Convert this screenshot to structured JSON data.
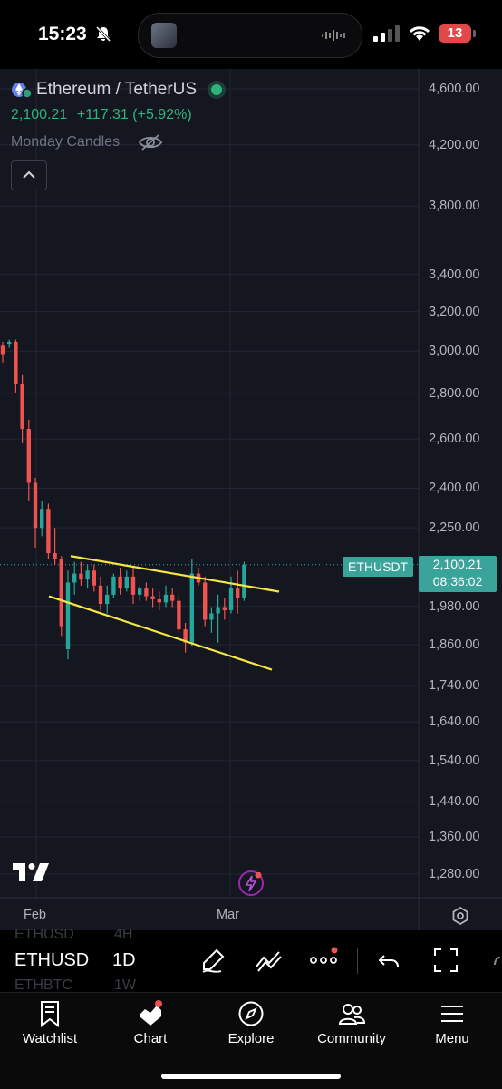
{
  "status_bar": {
    "time": "15:23",
    "battery": "13"
  },
  "chart": {
    "symbol_title": "Ethereum / TetherUS",
    "last_price": "2,100.21",
    "change": "+117.31 (+5.92%)",
    "series_label": "Monday Candles",
    "price_tag_label": "ETHUSDT",
    "current_price": "2,100.21",
    "countdown": "08:36:02",
    "y_axis_labels": [
      "4,600.00",
      "4,200.00",
      "3,800.00",
      "3,400.00",
      "3,200.00",
      "3,000.00",
      "2,800.00",
      "2,600.00",
      "2,400.00",
      "2,250.00",
      "1,980.00",
      "1,860.00",
      "1,740.00",
      "1,640.00",
      "1,540.00",
      "1,440.00",
      "1,360.00",
      "1,280.00"
    ],
    "x_axis_labels": [
      "Feb",
      "Mar"
    ],
    "colors": {
      "up": "#26a69a",
      "down": "#ef5350",
      "trendline": "#f5e642",
      "background": "#141620",
      "price_tag": "#3aa39a"
    }
  },
  "chart_data": {
    "type": "candlestick",
    "symbol": "ETHUSDT",
    "interval": "1D",
    "last_price": 2100.21,
    "y_axis_ticks": [
      4600,
      4200,
      3800,
      3400,
      3200,
      3000,
      2800,
      2600,
      2400,
      2250,
      1980,
      1860,
      1740,
      1640,
      1540,
      1440,
      1360,
      1280
    ],
    "x_axis_ticks": [
      "Feb",
      "Mar"
    ],
    "trendlines": [
      {
        "from": 2130,
        "to": 2010
      },
      {
        "from": 1995,
        "to": 1770
      }
    ],
    "candles": [
      {
        "o": 3000,
        "h": 3020,
        "l": 2920,
        "c": 2960
      },
      {
        "o": 3010,
        "h": 3030,
        "l": 2990,
        "c": 3020
      },
      {
        "o": 3020,
        "h": 3030,
        "l": 2780,
        "c": 2820
      },
      {
        "o": 2820,
        "h": 2860,
        "l": 2560,
        "c": 2620
      },
      {
        "o": 2620,
        "h": 2660,
        "l": 2330,
        "c": 2400
      },
      {
        "o": 2400,
        "h": 2420,
        "l": 2160,
        "c": 2230
      },
      {
        "o": 2230,
        "h": 2330,
        "l": 2200,
        "c": 2300
      },
      {
        "o": 2300,
        "h": 2320,
        "l": 2120,
        "c": 2140
      },
      {
        "o": 2140,
        "h": 2230,
        "l": 2100,
        "c": 2120
      },
      {
        "o": 2120,
        "h": 2130,
        "l": 1870,
        "c": 1900
      },
      {
        "o": 1830,
        "h": 2080,
        "l": 1800,
        "c": 2040
      },
      {
        "o": 2040,
        "h": 2110,
        "l": 2000,
        "c": 2070
      },
      {
        "o": 2070,
        "h": 2110,
        "l": 2030,
        "c": 2050
      },
      {
        "o": 2050,
        "h": 2100,
        "l": 2020,
        "c": 2080
      },
      {
        "o": 2080,
        "h": 2100,
        "l": 2010,
        "c": 2030
      },
      {
        "o": 2030,
        "h": 2060,
        "l": 1950,
        "c": 1970
      },
      {
        "o": 1970,
        "h": 2030,
        "l": 1940,
        "c": 2000
      },
      {
        "o": 2000,
        "h": 2070,
        "l": 1990,
        "c": 2060
      },
      {
        "o": 2060,
        "h": 2090,
        "l": 2000,
        "c": 2020
      },
      {
        "o": 2020,
        "h": 2080,
        "l": 2010,
        "c": 2060
      },
      {
        "o": 2060,
        "h": 2090,
        "l": 1970,
        "c": 2000
      },
      {
        "o": 2000,
        "h": 2030,
        "l": 1980,
        "c": 2020
      },
      {
        "o": 2020,
        "h": 2040,
        "l": 1980,
        "c": 1995
      },
      {
        "o": 1995,
        "h": 2020,
        "l": 1960,
        "c": 1985
      },
      {
        "o": 1985,
        "h": 2010,
        "l": 1950,
        "c": 1975
      },
      {
        "o": 1975,
        "h": 2030,
        "l": 1960,
        "c": 2000
      },
      {
        "o": 2000,
        "h": 2020,
        "l": 1960,
        "c": 1980
      },
      {
        "o": 1980,
        "h": 2000,
        "l": 1880,
        "c": 1890
      },
      {
        "o": 1890,
        "h": 1910,
        "l": 1820,
        "c": 1850
      },
      {
        "o": 1850,
        "h": 2120,
        "l": 1840,
        "c": 2070
      },
      {
        "o": 2070,
        "h": 2090,
        "l": 2030,
        "c": 2040
      },
      {
        "o": 2040,
        "h": 2060,
        "l": 1900,
        "c": 1920
      },
      {
        "o": 1920,
        "h": 1960,
        "l": 1880,
        "c": 1940
      },
      {
        "o": 1940,
        "h": 2000,
        "l": 1850,
        "c": 1960
      },
      {
        "o": 1960,
        "h": 1990,
        "l": 1920,
        "c": 1950
      },
      {
        "o": 1950,
        "h": 2060,
        "l": 1940,
        "c": 2020
      },
      {
        "o": 2020,
        "h": 2080,
        "l": 1940,
        "c": 1990
      },
      {
        "o": 1990,
        "h": 2110,
        "l": 1980,
        "c": 2100
      }
    ]
  },
  "toolbar": {
    "symbol": "ETHUSD",
    "interval": "1D",
    "ghost_prev_symbol": "ETHUSD",
    "ghost_prev_interval": "4H",
    "ghost_next_symbol": "ETHBTC",
    "ghost_next_interval": "1W"
  },
  "tabs": [
    {
      "label": "Watchlist",
      "icon": "bookmark-icon"
    },
    {
      "label": "Chart",
      "icon": "chart-icon"
    },
    {
      "label": "Explore",
      "icon": "compass-icon"
    },
    {
      "label": "Community",
      "icon": "people-icon"
    },
    {
      "label": "Menu",
      "icon": "hamburger-icon"
    }
  ]
}
